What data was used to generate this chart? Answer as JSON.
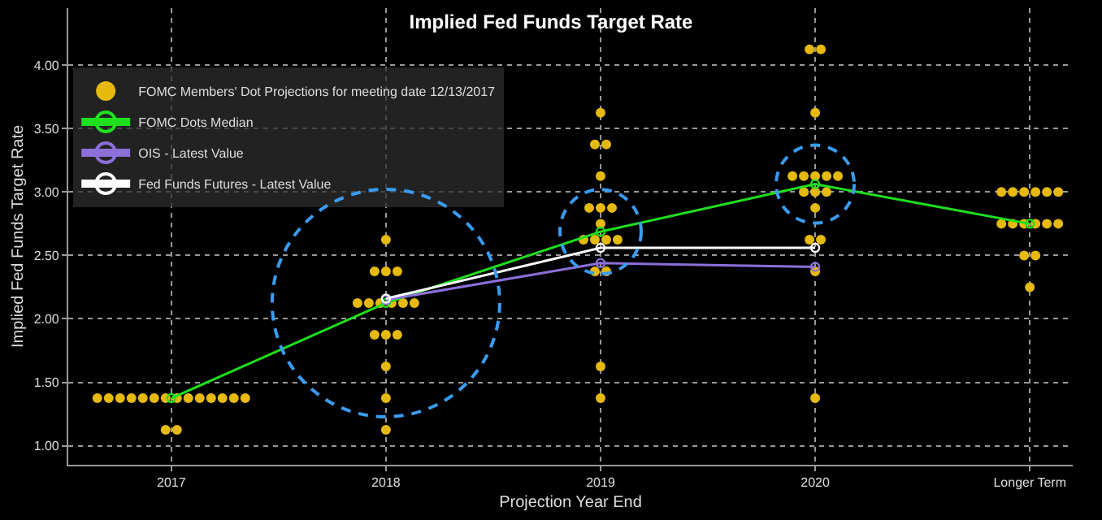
{
  "chart_data": {
    "type": "scatter",
    "title": "Implied Fed Funds Target Rate",
    "xlabel": "Projection Year End",
    "ylabel": "Implied Fed Funds Target Rate",
    "categories": [
      "2017",
      "2018",
      "2019",
      "2020",
      "Longer Term"
    ],
    "ylim": [
      0.85,
      4.45
    ],
    "yticks": [
      {
        "value": 1,
        "label": "1.00"
      },
      {
        "value": 1.5,
        "label": "1.50"
      },
      {
        "value": 2,
        "label": "2.00"
      },
      {
        "value": 2.5,
        "label": "2.50"
      },
      {
        "value": 3,
        "label": "3.00"
      },
      {
        "value": 3.5,
        "label": "3.50"
      },
      {
        "value": 4,
        "label": "4.00"
      }
    ],
    "grid": true,
    "legend": "top left",
    "series": [
      {
        "name": "FOMC Members' Dot Projections for meeting date 12/13/2017",
        "marker": "circle",
        "color": "#e6b90f",
        "values": [
          1.375,
          2.625,
          3.625,
          4.125,
          3
        ]
      },
      {
        "marker": "circle",
        "color": "#e6b90f",
        "values": [
          1.375,
          2.375,
          3.375,
          4.125,
          3
        ]
      },
      {
        "marker": "circle",
        "color": "#e6b90f",
        "values": [
          1.375,
          2.375,
          3.375,
          3.625,
          3
        ]
      },
      {
        "marker": "circle",
        "color": "#e6b90f",
        "values": [
          1.375,
          2.375,
          3.125,
          3.125,
          3
        ]
      },
      {
        "marker": "circle",
        "color": "#e6b90f",
        "values": [
          1.375,
          2.125,
          2.875,
          3.125,
          3
        ]
      },
      {
        "marker": "circle",
        "color": "#e6b90f",
        "values": [
          1.375,
          2.125,
          2.875,
          3.125,
          3
        ]
      },
      {
        "marker": "circle",
        "color": "#e6b90f",
        "values": [
          1.375,
          2.125,
          2.875,
          3.125,
          2.75
        ]
      },
      {
        "marker": "circle",
        "color": "#e6b90f",
        "values": [
          1.375,
          2.125,
          2.75,
          3.125,
          2.75
        ]
      },
      {
        "marker": "circle",
        "color": "#e6b90f",
        "values": [
          1.375,
          2.125,
          2.625,
          3,
          2.75
        ]
      },
      {
        "marker": "circle",
        "color": "#e6b90f",
        "values": [
          1.375,
          2.125,
          2.625,
          3,
          2.75
        ]
      },
      {
        "marker": "circle",
        "color": "#e6b90f",
        "values": [
          1.375,
          1.875,
          2.625,
          3,
          2.75
        ]
      },
      {
        "marker": "circle",
        "color": "#e6b90f",
        "values": [
          1.375,
          1.875,
          2.625,
          2.875,
          2.75
        ]
      },
      {
        "marker": "circle",
        "color": "#e6b90f",
        "values": [
          1.375,
          1.875,
          2.375,
          2.625,
          2.5
        ]
      },
      {
        "marker": "circle",
        "color": "#e6b90f",
        "values": [
          1.375,
          1.625,
          2.375,
          2.625,
          2.5
        ]
      },
      {
        "marker": "circle",
        "color": "#e6b90f",
        "values": [
          1.125,
          1.375,
          1.625,
          2.375,
          2.25
        ]
      },
      {
        "marker": "circle",
        "color": "#e6b90f",
        "values": [
          1.125,
          1.125,
          1.375,
          1.375,
          null
        ]
      },
      {
        "name": "FOMC Dots Median",
        "type": "line",
        "marker": "circle",
        "color": "#1ee01e",
        "values": [
          1.375,
          2.125,
          2.6875,
          3.0625,
          2.75
        ]
      },
      {
        "name": "OIS - Latest Value",
        "type": "line",
        "marker": "circle",
        "color": "#8c6fd9",
        "values": [
          null,
          2.15,
          2.44,
          2.41,
          null
        ]
      },
      {
        "name": "Fed Funds Futures - Latest Value",
        "type": "line",
        "marker": "circle",
        "color": "#ffffff",
        "values": [
          null,
          2.16,
          2.56,
          2.56,
          null
        ]
      }
    ]
  }
}
